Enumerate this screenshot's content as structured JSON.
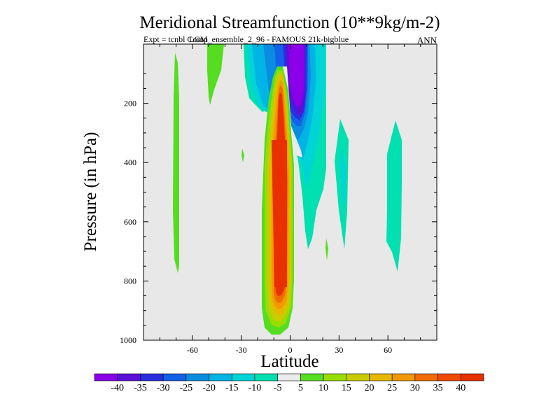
{
  "chart_data": {
    "type": "heatmap",
    "title": "Meridional Streamfunction (10**9kg/m-2)",
    "subtitle_left": "Expt = tcnbl Comp",
    "subtitle_overlap": "LGM_ensemble_2_96 - FAMOUS 21k-bigblue",
    "subtitle_right": "ANN",
    "xlabel": "Latitude",
    "ylabel": "Pressure (in hPa)",
    "xlim": [
      -90,
      90
    ],
    "ylim": [
      0,
      1000
    ],
    "y_inverted": true,
    "xticks": [
      -60,
      -30,
      0,
      30,
      60
    ],
    "xtick_labels": [
      "-60",
      "-30",
      "0",
      "30",
      "60"
    ],
    "yticks": [
      200,
      400,
      600,
      800,
      1000
    ],
    "ytick_labels": [
      "200",
      "400",
      "600",
      "800",
      "1000"
    ],
    "colorbar": {
      "levels": [
        -40,
        -35,
        -30,
        -25,
        -20,
        -15,
        -10,
        -5,
        5,
        10,
        15,
        20,
        25,
        30,
        35,
        40
      ],
      "labels": [
        "-40",
        "-35",
        "-30",
        "-25",
        "-20",
        "-15",
        "-10",
        "-5",
        "5",
        "10",
        "15",
        "20",
        "25",
        "30",
        "35",
        "40"
      ],
      "colors": [
        "#8b00e8",
        "#5a10d8",
        "#2a2ee0",
        "#1560e8",
        "#0a8ce0",
        "#00b4e6",
        "#00d4d6",
        "#00e0b0",
        "#ebebeb",
        "#55dd22",
        "#99dd00",
        "#c8cc00",
        "#e6b800",
        "#f09a00",
        "#f06c00",
        "#f04a00",
        "#e83000"
      ]
    },
    "background_color": "#e8e8e8",
    "features": [
      {
        "name": "positive-cell-core",
        "value": 40,
        "lat_range": [
          -16,
          8
        ],
        "p_range": [
          120,
          900
        ]
      },
      {
        "name": "negative-cell-upper",
        "value": -40,
        "lat_range": [
          0,
          12
        ],
        "p_range": [
          0,
          220
        ]
      },
      {
        "name": "weak-positive-south",
        "value": 5,
        "lat_range": [
          -68,
          -64
        ],
        "p_range": [
          40,
          790
        ]
      },
      {
        "name": "weak-negative-north",
        "value": -10,
        "lat_range": [
          54,
          64
        ],
        "p_range": [
          290,
          780
        ]
      }
    ]
  }
}
